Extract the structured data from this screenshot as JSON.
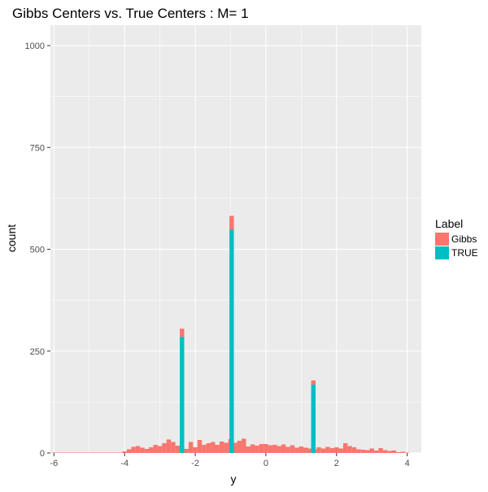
{
  "chart_data": {
    "type": "bar",
    "title": "Gibbs Centers vs. True Centers : M= 1",
    "xlabel": "y",
    "ylabel": "count",
    "xlim": [
      -6.1,
      4.4
    ],
    "ylim": [
      0,
      1050
    ],
    "x_ticks": [
      -6,
      -4,
      -2,
      0,
      2,
      4
    ],
    "y_ticks": [
      0,
      250,
      500,
      750,
      1000
    ],
    "x_tick_labels": [
      "-6",
      "-4",
      "-2",
      "0",
      "2",
      "4"
    ],
    "y_tick_labels": [
      "0",
      "250",
      "500",
      "750",
      "1000"
    ],
    "grid": true,
    "stacked": true,
    "legend": {
      "title": "Label",
      "position": "right"
    },
    "bin_width": 0.125,
    "series": [
      {
        "name": "Gibbs",
        "color": "#F8766D",
        "bins": [
          [
            -6.0,
            1
          ],
          [
            -5.875,
            1
          ],
          [
            -5.75,
            1
          ],
          [
            -5.625,
            1
          ],
          [
            -5.5,
            1
          ],
          [
            -5.375,
            1
          ],
          [
            -5.25,
            1
          ],
          [
            -5.125,
            1
          ],
          [
            -5.0,
            1
          ],
          [
            -4.875,
            1
          ],
          [
            -4.75,
            1
          ],
          [
            -4.625,
            1
          ],
          [
            -4.5,
            1
          ],
          [
            -4.375,
            1
          ],
          [
            -4.25,
            1
          ],
          [
            -4.125,
            1
          ],
          [
            -4.0,
            4
          ],
          [
            -3.875,
            9
          ],
          [
            -3.75,
            15
          ],
          [
            -3.625,
            17
          ],
          [
            -3.5,
            13
          ],
          [
            -3.375,
            10
          ],
          [
            -3.25,
            14
          ],
          [
            -3.125,
            20
          ],
          [
            -3.0,
            17
          ],
          [
            -2.875,
            24
          ],
          [
            -2.75,
            33
          ],
          [
            -2.625,
            27
          ],
          [
            -2.5,
            18
          ],
          [
            -2.375,
            22
          ],
          [
            -2.25,
            10
          ],
          [
            -2.125,
            27
          ],
          [
            -2.0,
            14
          ],
          [
            -1.875,
            32
          ],
          [
            -1.75,
            20
          ],
          [
            -1.625,
            24
          ],
          [
            -1.5,
            27
          ],
          [
            -1.375,
            20
          ],
          [
            -1.25,
            28
          ],
          [
            -1.125,
            25
          ],
          [
            -1.0,
            34
          ],
          [
            -0.875,
            25
          ],
          [
            -0.75,
            30
          ],
          [
            -0.625,
            35
          ],
          [
            -0.5,
            16
          ],
          [
            -0.375,
            21
          ],
          [
            -0.25,
            18
          ],
          [
            -0.125,
            22
          ],
          [
            0.0,
            22
          ],
          [
            0.125,
            19
          ],
          [
            0.25,
            20
          ],
          [
            0.375,
            17
          ],
          [
            0.5,
            21
          ],
          [
            0.625,
            15
          ],
          [
            0.75,
            19
          ],
          [
            0.875,
            13
          ],
          [
            1.0,
            16
          ],
          [
            1.125,
            13
          ],
          [
            1.25,
            11
          ],
          [
            1.375,
            9
          ],
          [
            1.5,
            14
          ],
          [
            1.625,
            11
          ],
          [
            1.75,
            15
          ],
          [
            1.875,
            12
          ],
          [
            2.0,
            14
          ],
          [
            2.125,
            11
          ],
          [
            2.25,
            24
          ],
          [
            2.375,
            17
          ],
          [
            2.5,
            14
          ],
          [
            2.625,
            9
          ],
          [
            2.75,
            8
          ],
          [
            2.875,
            7
          ],
          [
            3.0,
            11
          ],
          [
            3.125,
            6
          ],
          [
            3.25,
            12
          ],
          [
            3.375,
            7
          ],
          [
            3.5,
            5
          ],
          [
            3.625,
            6
          ],
          [
            3.75,
            2
          ],
          [
            3.875,
            3
          ],
          [
            4.0,
            1
          ]
        ]
      },
      {
        "name": "TRUE",
        "color": "#00BFC4",
        "bins": [
          [
            -2.375,
            285
          ],
          [
            -0.969,
            548
          ],
          [
            1.344,
            168
          ]
        ],
        "gibbs_on_top": [
          20,
          34,
          10
        ]
      }
    ]
  }
}
